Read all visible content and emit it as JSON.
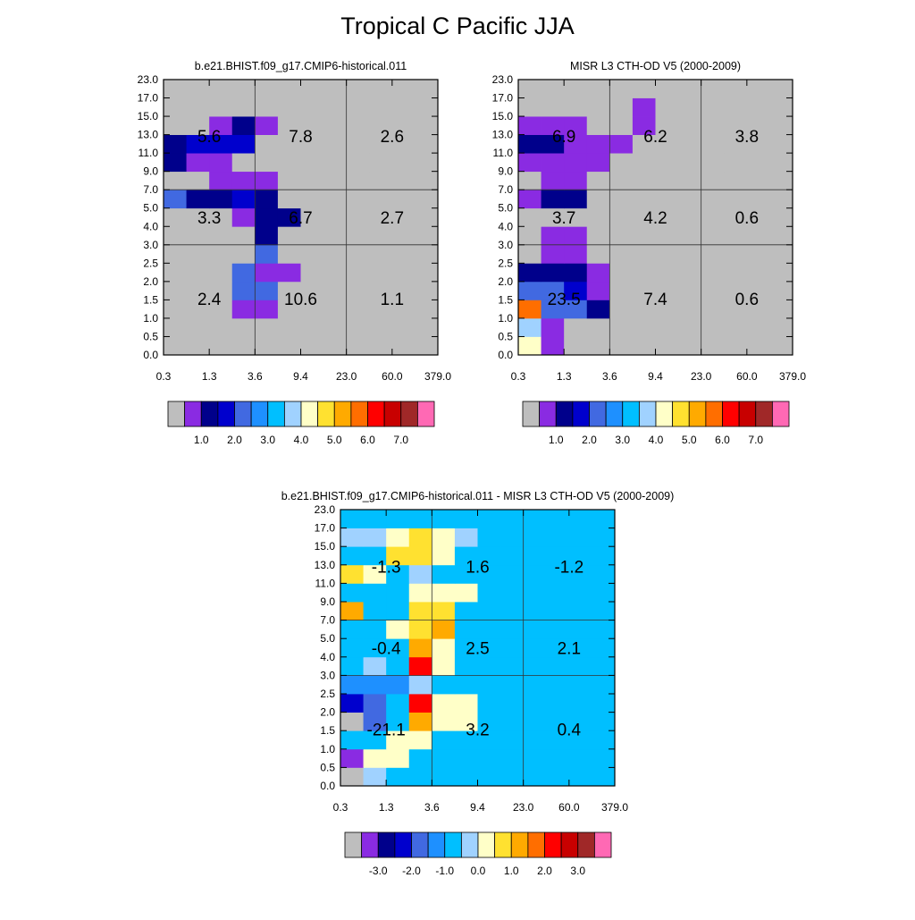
{
  "figure_title": "Tropical C Pacific JJA",
  "chart_data": [
    {
      "type": "heatmap",
      "title": "b.e21.BHIST.f09_g17.CMIP6-historical.011",
      "x_ticks": [
        "0.3",
        "1.3",
        "3.6",
        "9.4",
        "23.0",
        "60.0",
        "379.0"
      ],
      "y_ticks": [
        "0.0",
        "0.5",
        "1.0",
        "1.5",
        "2.0",
        "2.5",
        "3.0",
        "4.0",
        "5.0",
        "7.0",
        "9.0",
        "11.0",
        "13.0",
        "15.0",
        "17.0",
        "23.0"
      ],
      "cells": [
        [
          0,
          0,
          0,
          0,
          0,
          0,
          0,
          0,
          0,
          0,
          0,
          0,
          0,
          0,
          0
        ],
        [
          0,
          0,
          0,
          0,
          0,
          0,
          0,
          0,
          0,
          0,
          0,
          0,
          0,
          0,
          0
        ],
        [
          0,
          0,
          0,
          1,
          1,
          0,
          0,
          0,
          0,
          0,
          0,
          0,
          0,
          0,
          0
        ],
        [
          0,
          0,
          0,
          4,
          4,
          0,
          0,
          0,
          0,
          0,
          0,
          0,
          0,
          0,
          0
        ],
        [
          0,
          0,
          0,
          4,
          1,
          1,
          0,
          0,
          0,
          0,
          0,
          0,
          0,
          0,
          0
        ],
        [
          0,
          0,
          0,
          0,
          4,
          0,
          0,
          0,
          0,
          0,
          0,
          0,
          0,
          0,
          0
        ],
        [
          0,
          0,
          0,
          0,
          2,
          0,
          0,
          0,
          0,
          0,
          0,
          0,
          0,
          0,
          0
        ],
        [
          0,
          0,
          0,
          1,
          2,
          2,
          0,
          0,
          0,
          0,
          0,
          0,
          0,
          0,
          0
        ],
        [
          4,
          2,
          2,
          3,
          2,
          0,
          0,
          0,
          0,
          0,
          0,
          0,
          0,
          0,
          0
        ],
        [
          0,
          0,
          1,
          1,
          1,
          0,
          0,
          0,
          0,
          0,
          0,
          0,
          0,
          0,
          0
        ],
        [
          2,
          1,
          1,
          0,
          0,
          0,
          0,
          0,
          0,
          0,
          0,
          0,
          0,
          0,
          0
        ],
        [
          2,
          3,
          3,
          3,
          0,
          0,
          0,
          0,
          0,
          0,
          0,
          0,
          0,
          0,
          0
        ],
        [
          0,
          0,
          1,
          2,
          1,
          0,
          0,
          0,
          0,
          0,
          0,
          0,
          0,
          0,
          0
        ],
        [
          0,
          0,
          0,
          0,
          0,
          0,
          0,
          0,
          0,
          0,
          0,
          0,
          0,
          0,
          0
        ],
        [
          0,
          0,
          0,
          0,
          0,
          0,
          0,
          0,
          0,
          0,
          0,
          0,
          0,
          0,
          0
        ]
      ],
      "labels": [
        {
          "col": 0,
          "row": 1,
          "text": "2.4"
        },
        {
          "col": 1,
          "row": 1,
          "text": "10.6"
        },
        {
          "col": 2,
          "row": 1,
          "text": "1.1"
        },
        {
          "col": 0,
          "row": 2,
          "text": "3.3"
        },
        {
          "col": 1,
          "row": 2,
          "text": "6.7"
        },
        {
          "col": 2,
          "row": 2,
          "text": "2.7"
        },
        {
          "col": 0,
          "row": 3,
          "text": "5.6"
        },
        {
          "col": 1,
          "row": 3,
          "text": "7.8"
        },
        {
          "col": 2,
          "row": 3,
          "text": "2.6"
        }
      ]
    },
    {
      "type": "heatmap",
      "title": "MISR L3 CTH-OD V5 (2000-2009)",
      "x_ticks": [
        "0.3",
        "1.3",
        "3.6",
        "9.4",
        "23.0",
        "60.0",
        "379.0"
      ],
      "y_ticks": [
        "0.0",
        "0.5",
        "1.0",
        "1.5",
        "2.0",
        "2.5",
        "3.0",
        "4.0",
        "5.0",
        "7.0",
        "9.0",
        "11.0",
        "13.0",
        "15.0",
        "17.0",
        "23.0"
      ],
      "cells": [
        [
          8,
          1,
          0,
          0,
          0,
          0,
          0,
          0,
          0,
          0,
          0,
          0,
          0,
          0,
          0
        ],
        [
          7,
          1,
          0,
          0,
          0,
          0,
          0,
          0,
          0,
          0,
          0,
          0,
          0,
          0,
          0
        ],
        [
          11,
          4,
          4,
          2,
          0,
          0,
          0,
          0,
          0,
          0,
          0,
          0,
          0,
          0,
          0
        ],
        [
          4,
          4,
          3,
          1,
          0,
          0,
          0,
          0,
          0,
          0,
          0,
          0,
          0,
          0,
          0
        ],
        [
          2,
          2,
          2,
          1,
          0,
          0,
          0,
          0,
          0,
          0,
          0,
          0,
          0,
          0,
          0
        ],
        [
          0,
          1,
          1,
          0,
          0,
          0,
          0,
          0,
          0,
          0,
          0,
          0,
          0,
          0,
          0
        ],
        [
          0,
          1,
          1,
          0,
          0,
          0,
          0,
          0,
          0,
          0,
          0,
          0,
          0,
          0,
          0
        ],
        [
          0,
          0,
          0,
          0,
          0,
          0,
          0,
          0,
          0,
          0,
          0,
          0,
          0,
          0,
          0
        ],
        [
          1,
          2,
          2,
          0,
          0,
          0,
          0,
          0,
          0,
          0,
          0,
          0,
          0,
          0,
          0
        ],
        [
          0,
          1,
          1,
          0,
          0,
          0,
          0,
          0,
          0,
          0,
          0,
          0,
          0,
          0,
          0
        ],
        [
          1,
          1,
          1,
          1,
          0,
          0,
          0,
          0,
          0,
          0,
          0,
          0,
          0,
          0,
          0
        ],
        [
          2,
          2,
          1,
          1,
          1,
          0,
          0,
          0,
          0,
          0,
          0,
          0,
          0,
          0,
          0
        ],
        [
          1,
          1,
          1,
          0,
          0,
          1,
          0,
          0,
          0,
          0,
          0,
          0,
          0,
          0,
          0
        ],
        [
          0,
          0,
          0,
          0,
          0,
          1,
          0,
          0,
          0,
          0,
          0,
          0,
          0,
          0,
          0
        ],
        [
          0,
          0,
          0,
          0,
          0,
          0,
          0,
          0,
          0,
          0,
          0,
          0,
          0,
          0,
          0
        ]
      ],
      "labels": [
        {
          "col": 0,
          "row": 1,
          "text": "23.5"
        },
        {
          "col": 1,
          "row": 1,
          "text": "7.4"
        },
        {
          "col": 2,
          "row": 1,
          "text": "0.6"
        },
        {
          "col": 0,
          "row": 2,
          "text": "3.7"
        },
        {
          "col": 1,
          "row": 2,
          "text": "4.2"
        },
        {
          "col": 2,
          "row": 2,
          "text": "0.6"
        },
        {
          "col": 0,
          "row": 3,
          "text": "6.9"
        },
        {
          "col": 1,
          "row": 3,
          "text": "6.2"
        },
        {
          "col": 2,
          "row": 3,
          "text": "3.8"
        }
      ]
    },
    {
      "type": "heatmap",
      "title": "b.e21.BHIST.f09_g17.CMIP6-historical.011 - MISR L3 CTH-OD V5 (2000-2009)",
      "x_ticks": [
        "0.3",
        "1.3",
        "3.6",
        "9.4",
        "23.0",
        "60.0",
        "379.0"
      ],
      "y_ticks": [
        "0.0",
        "0.5",
        "1.0",
        "1.5",
        "2.0",
        "2.5",
        "3.0",
        "4.0",
        "5.0",
        "7.0",
        "9.0",
        "11.0",
        "13.0",
        "15.0",
        "17.0",
        "23.0"
      ],
      "cells": [
        [
          0,
          7,
          6,
          6,
          6,
          6,
          6,
          6,
          6,
          6,
          6,
          6,
          6,
          6,
          6
        ],
        [
          1,
          8,
          8,
          6,
          6,
          6,
          6,
          6,
          6,
          6,
          6,
          6,
          6,
          6,
          6
        ],
        [
          6,
          6,
          8,
          8,
          6,
          6,
          6,
          6,
          6,
          6,
          6,
          6,
          6,
          6,
          6
        ],
        [
          0,
          4,
          6,
          10,
          8,
          8,
          6,
          6,
          6,
          6,
          6,
          6,
          6,
          6,
          6
        ],
        [
          3,
          4,
          6,
          12,
          8,
          8,
          6,
          6,
          6,
          6,
          6,
          6,
          6,
          6,
          6
        ],
        [
          5,
          5,
          5,
          7,
          6,
          6,
          6,
          6,
          6,
          6,
          6,
          6,
          6,
          6,
          6
        ],
        [
          6,
          7,
          6,
          12,
          8,
          6,
          6,
          6,
          6,
          6,
          6,
          6,
          6,
          6,
          6
        ],
        [
          6,
          6,
          6,
          10,
          8,
          6,
          6,
          6,
          6,
          6,
          6,
          6,
          6,
          6,
          6
        ],
        [
          6,
          6,
          8,
          9,
          10,
          6,
          6,
          6,
          6,
          6,
          6,
          6,
          6,
          6,
          6
        ],
        [
          10,
          6,
          6,
          9,
          9,
          6,
          6,
          6,
          6,
          6,
          6,
          6,
          6,
          6,
          6
        ],
        [
          6,
          6,
          6,
          8,
          8,
          8,
          6,
          6,
          6,
          6,
          6,
          6,
          6,
          6,
          6
        ],
        [
          9,
          8,
          6,
          7,
          6,
          6,
          6,
          6,
          6,
          6,
          6,
          6,
          6,
          6,
          6
        ],
        [
          6,
          6,
          9,
          9,
          8,
          6,
          6,
          6,
          6,
          6,
          6,
          6,
          6,
          6,
          6
        ],
        [
          7,
          7,
          8,
          9,
          8,
          7,
          6,
          6,
          6,
          6,
          6,
          6,
          6,
          6,
          6
        ],
        [
          6,
          6,
          6,
          6,
          6,
          6,
          6,
          6,
          6,
          6,
          6,
          6,
          6,
          6,
          6
        ]
      ],
      "labels": [
        {
          "col": 0,
          "row": 1,
          "text": "-21.1"
        },
        {
          "col": 1,
          "row": 1,
          "text": "3.2"
        },
        {
          "col": 2,
          "row": 1,
          "text": "0.4"
        },
        {
          "col": 0,
          "row": 2,
          "text": "-0.4"
        },
        {
          "col": 1,
          "row": 2,
          "text": "2.5"
        },
        {
          "col": 2,
          "row": 2,
          "text": "2.1"
        },
        {
          "col": 0,
          "row": 3,
          "text": "-1.3"
        },
        {
          "col": 1,
          "row": 3,
          "text": "1.6"
        },
        {
          "col": 2,
          "row": 3,
          "text": "-1.2"
        }
      ]
    }
  ],
  "colorbars": [
    {
      "palette": "abs",
      "labels": [
        "1.0",
        "2.0",
        "3.0",
        "4.0",
        "5.0",
        "6.0",
        "7.0"
      ]
    },
    {
      "palette": "abs",
      "labels": [
        "1.0",
        "2.0",
        "3.0",
        "4.0",
        "5.0",
        "6.0",
        "7.0"
      ]
    },
    {
      "palette": "diff",
      "labels": [
        "-3.0",
        "-2.0",
        "-1.0",
        "0.0",
        "1.0",
        "2.0",
        "3.0"
      ]
    }
  ],
  "palettes": {
    "abs": [
      "#bebebe",
      "#8a2be2",
      "#00008b",
      "#0000cd",
      "#4169e1",
      "#1e90ff",
      "#00bfff",
      "#a0d2ff",
      "#ffffc8",
      "#ffe130",
      "#ffaa00",
      "#ff6e00",
      "#ff0000",
      "#c80000",
      "#a02828",
      "#ff69b4"
    ],
    "diff": [
      "#bebebe",
      "#8a2be2",
      "#00008b",
      "#0000cd",
      "#4169e1",
      "#1e90ff",
      "#00bfff",
      "#a0d2ff",
      "#ffffc8",
      "#ffe130",
      "#ffaa00",
      "#ff6e00",
      "#ff0000",
      "#c80000",
      "#a02828",
      "#ff69b4"
    ]
  }
}
